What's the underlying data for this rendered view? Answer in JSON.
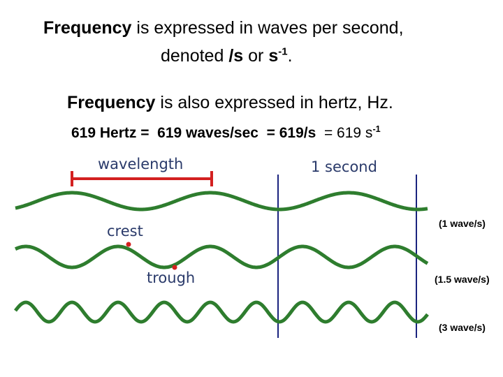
{
  "heading": {
    "line1_bold": "Frequency",
    "line1_rest": " is expressed in waves per second,",
    "line2_pre": "denoted ",
    "line2_unit1": "/s",
    "line2_mid": " or ",
    "line2_unit2": "s",
    "line2_exp": "-1",
    "line2_end": "."
  },
  "hertz": {
    "bold": "Frequency",
    "rest": " is also expressed in hertz, Hz."
  },
  "equation": {
    "part1": "619 Hertz =",
    "part2": "619 waves/sec",
    "part3": "= 619/s",
    "part4": "= 619 s",
    "exp": "-1"
  },
  "diagram": {
    "wavelength_label": "wavelength",
    "second_label": "1 second",
    "crest_label": "crest",
    "trough_label": "trough",
    "waves": [
      {
        "rate_label": "(1 wave/s)",
        "cycles_per_second": 1,
        "color": "#2e7d2e"
      },
      {
        "rate_label": "(1.5 wave/s)",
        "cycles_per_second": 1.5,
        "color": "#2e7d2e"
      },
      {
        "rate_label": "(3 wave/s)",
        "cycles_per_second": 3,
        "color": "#2e7d2e"
      }
    ],
    "marker_color": "#d32020",
    "second_line_color": "#1a237e"
  }
}
